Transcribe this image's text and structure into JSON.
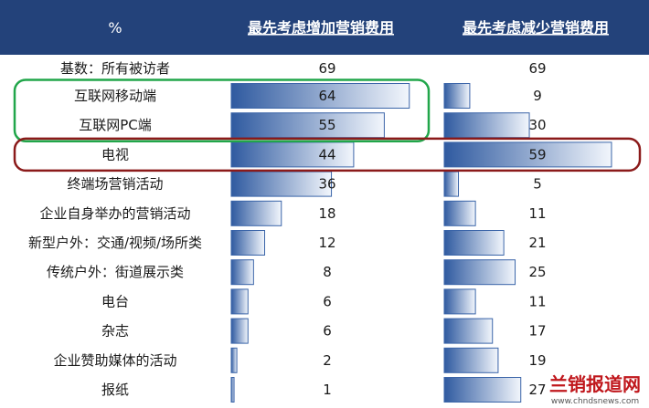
{
  "chart_data": {
    "type": "bar",
    "header": {
      "corner": "%",
      "columns": [
        "最先考虑增加营销费用",
        "最先考虑减少营销费用"
      ]
    },
    "base_row": {
      "label": "基数：所有被访者",
      "values": [
        69,
        69
      ]
    },
    "categories": [
      "互联网移动端",
      "互联网PC端",
      "电视",
      "终端场营销活动",
      "企业自身举办的营销活动",
      "新型户外：交通/视频/场所类",
      "传统户外：街道展示类",
      "电台",
      "杂志",
      "企业赞助媒体的活动",
      "报纸"
    ],
    "series": [
      {
        "name": "最先考虑增加营销费用",
        "values": [
          64,
          55,
          44,
          36,
          18,
          12,
          8,
          6,
          6,
          2,
          1
        ]
      },
      {
        "name": "最先考虑减少营销费用",
        "values": [
          9,
          30,
          59,
          5,
          11,
          21,
          25,
          11,
          17,
          19,
          27
        ]
      }
    ],
    "xlim": [
      0,
      69
    ],
    "highlights": [
      {
        "rows": [
          "互联网移动端",
          "互联网PC端"
        ],
        "color": "#21a64a"
      },
      {
        "rows": [
          "电视"
        ],
        "color": "#8b1a1a"
      }
    ],
    "colors": {
      "header_bg": "#23427a",
      "bar_dark": "#2f5aa0",
      "bar_light": "#f2f6fc",
      "bar_border": "#3a64a8"
    }
  },
  "watermark": {
    "text": "兰销报道网",
    "url": "www.chndsnews.com"
  }
}
